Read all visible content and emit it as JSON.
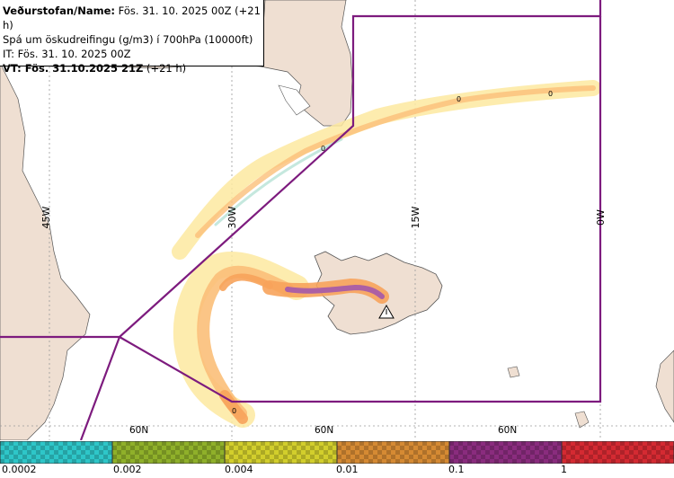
{
  "header": {
    "line1_label": "Veðurstofan/Name:",
    "line1_value": "Fös. 31. 10. 2025 00Z (+21 h)",
    "line2": "Spá um öskudreifingu (g/m3) í 700hPa (10000ft)",
    "line3": "IT: Fös. 31. 10. 2025 00Z",
    "line4_label": "VT: Fös. 31.10.2025 21Z",
    "line4_value": "(+21 h)"
  },
  "map": {
    "meridian_labels": [
      "45W",
      "30W",
      "15W",
      "0W"
    ],
    "parallel_labels": [
      "60N",
      "60N",
      "60N"
    ],
    "contour_marks": [
      "0",
      "0",
      "0",
      "0"
    ],
    "colors": {
      "land": "#efdfd2",
      "sea": "#ffffff",
      "boundary": "#7d1b7e",
      "grid": "#9a9a9a",
      "ash_low": "#fde9a0",
      "ash_mid": "#fbbf79",
      "ash_high": "#f7a35b",
      "ash_core": "#a85ca8"
    }
  },
  "legend": {
    "colors": [
      "#2ec6c8",
      "#8fb02a",
      "#d2ce2c",
      "#d58a33",
      "#8a2c7e",
      "#d42a32"
    ],
    "tick_labels": [
      "0.0002",
      "0.002",
      "0.004",
      "0.01",
      "0.1",
      "1"
    ]
  }
}
